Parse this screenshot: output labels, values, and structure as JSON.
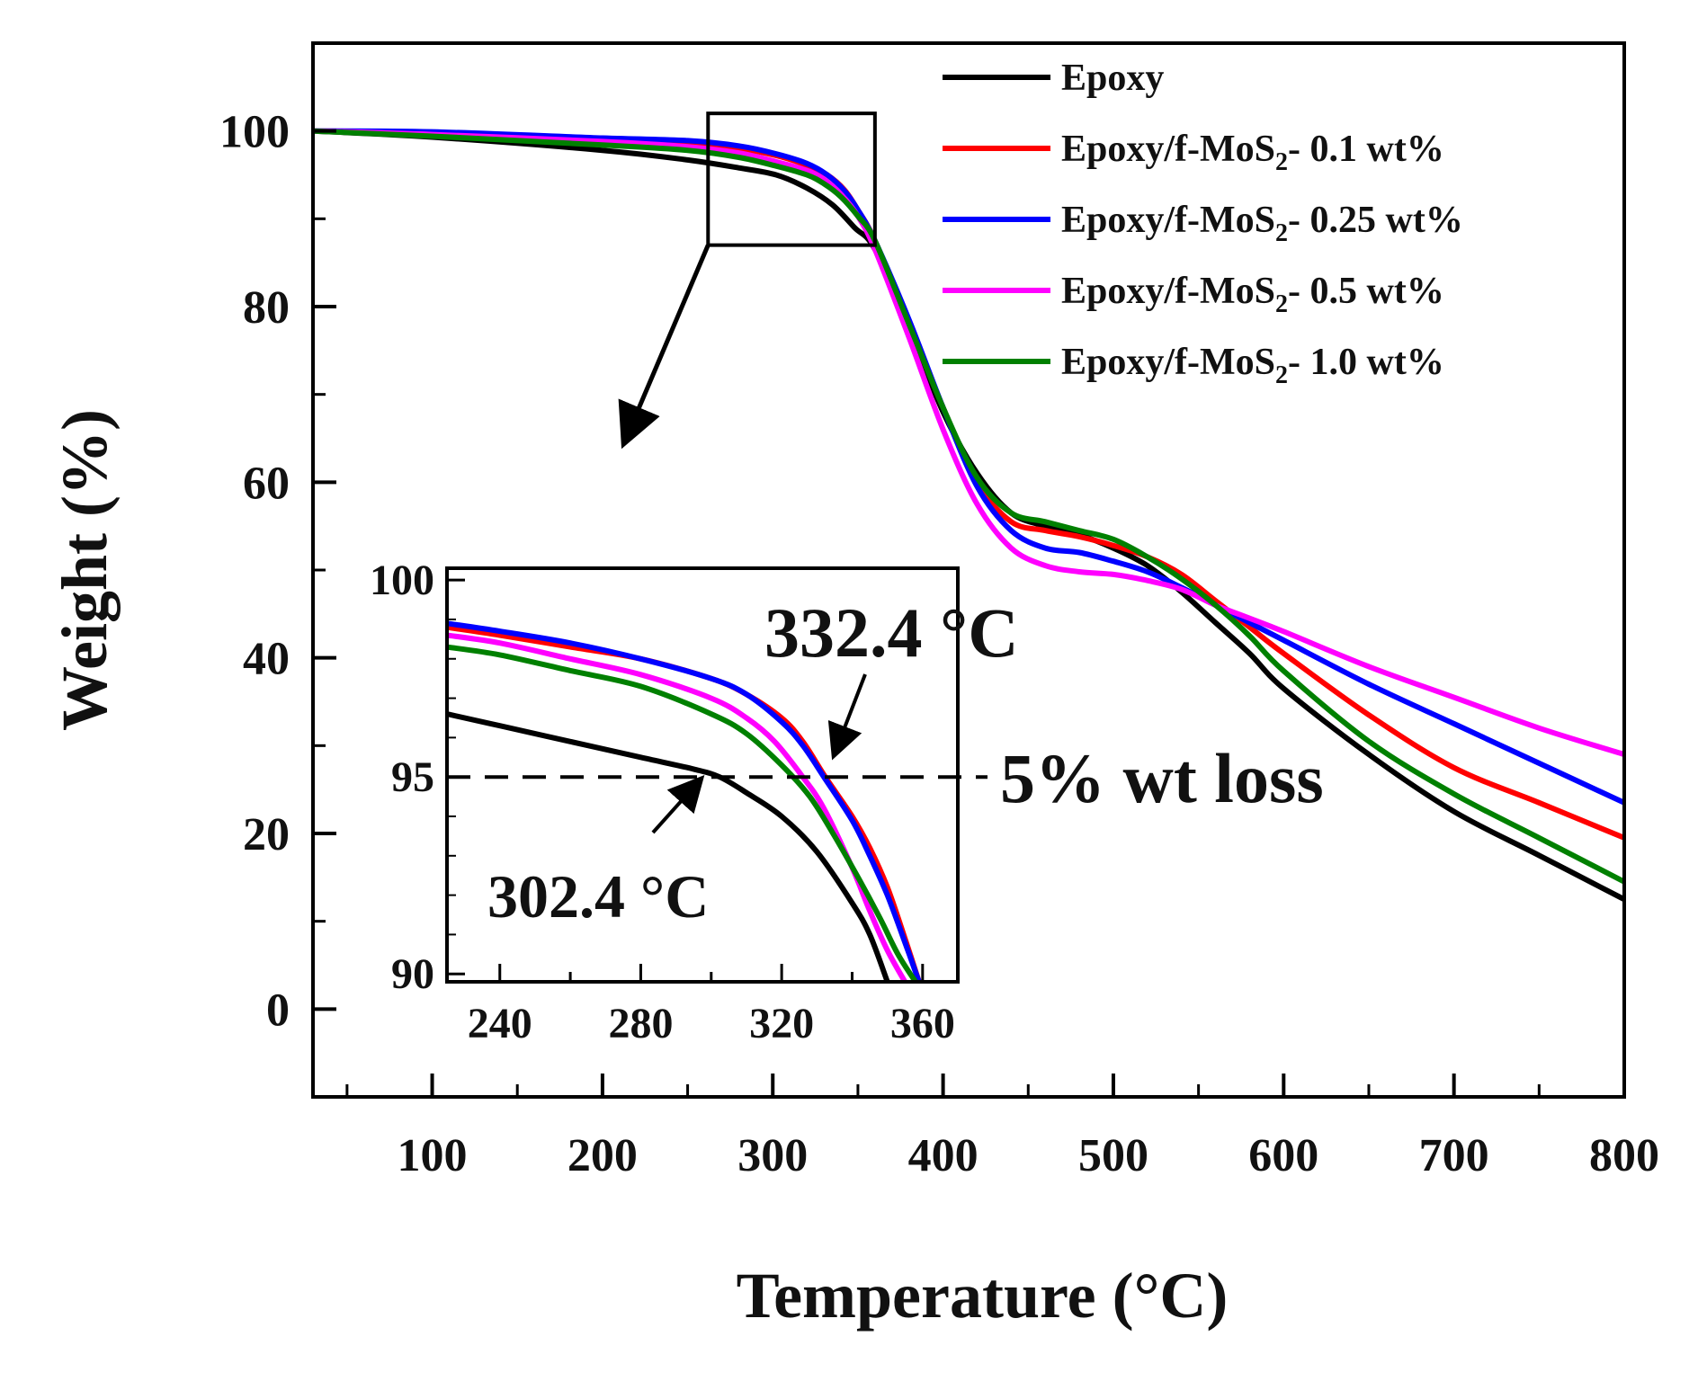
{
  "chart_data": [
    {
      "type": "line",
      "name": "main",
      "xlabel": "Temperature (°C)",
      "ylabel": "Weight (%)",
      "xlim": [
        30,
        800
      ],
      "ylim": [
        -10,
        110
      ],
      "xticks": [
        "100",
        "200",
        "300",
        "400",
        "500",
        "600",
        "700",
        "800"
      ],
      "yticks": [
        "0",
        "20",
        "40",
        "60",
        "80",
        "100"
      ],
      "legend": {
        "placement": "top-right",
        "items": [
          {
            "label": "Epoxy",
            "sub": "",
            "suffix": ""
          },
          {
            "label": "Epoxy/f-MoS",
            "sub": "2",
            "suffix": "- 0.1 wt%"
          },
          {
            "label": "Epoxy/f-MoS",
            "sub": "2",
            "suffix": "- 0.25 wt%"
          },
          {
            "label": "Epoxy/f-MoS",
            "sub": "2",
            "suffix": "- 0.5 wt%"
          },
          {
            "label": "Epoxy/f-MoS",
            "sub": "2",
            "suffix": "- 1.0 wt%"
          }
        ]
      },
      "series": [
        {
          "name": "Epoxy",
          "color": "#000000",
          "x": [
            30,
            100,
            200,
            250,
            280,
            302,
            320,
            335,
            348,
            360,
            380,
            400,
            420,
            440,
            460,
            480,
            500,
            520,
            540,
            560,
            580,
            600,
            650,
            700,
            750,
            800
          ],
          "y": [
            100,
            99.3,
            97.8,
            96.7,
            95.8,
            95.0,
            93.5,
            91.6,
            89.0,
            86.5,
            77.5,
            68.0,
            61.0,
            56.5,
            55.0,
            54.0,
            52.5,
            50.5,
            47.5,
            44.0,
            40.5,
            36.5,
            29.0,
            22.5,
            17.5,
            12.5
          ]
        },
        {
          "name": "Epoxy/f-MoS2- 0.1 wt%",
          "color": "#ff0000",
          "x": [
            30,
            100,
            200,
            250,
            280,
            302,
            320,
            332,
            342,
            350,
            360,
            380,
            400,
            420,
            440,
            460,
            480,
            500,
            520,
            540,
            560,
            580,
            600,
            650,
            700,
            750,
            800
          ],
          "y": [
            100,
            99.8,
            99.0,
            98.6,
            98.0,
            97.2,
            96.1,
            95.0,
            93.3,
            91.0,
            87.5,
            78.0,
            68.5,
            60.0,
            55.5,
            54.5,
            53.8,
            52.8,
            51.5,
            49.5,
            46.5,
            43.5,
            40.5,
            33.5,
            27.5,
            23.5,
            19.5
          ]
        },
        {
          "name": "Epoxy/f-MoS2- 0.25 wt%",
          "color": "#0000ff",
          "x": [
            30,
            100,
            200,
            250,
            280,
            302,
            320,
            332,
            342,
            350,
            360,
            380,
            400,
            420,
            440,
            460,
            480,
            500,
            520,
            540,
            560,
            580,
            600,
            650,
            700,
            750,
            800
          ],
          "y": [
            100,
            99.9,
            99.2,
            98.9,
            98.3,
            97.4,
            96.3,
            95.0,
            93.2,
            91.0,
            87.5,
            78.5,
            68.5,
            59.5,
            54.5,
            52.5,
            52.0,
            51.0,
            49.8,
            48.0,
            46.0,
            44.0,
            42.0,
            37.0,
            32.5,
            28.0,
            23.5
          ]
        },
        {
          "name": "Epoxy/f-MoS2- 0.5 wt%",
          "color": "#ff00ff",
          "x": [
            30,
            100,
            200,
            250,
            280,
            302,
            320,
            330,
            340,
            350,
            360,
            380,
            400,
            420,
            440,
            460,
            480,
            500,
            520,
            540,
            560,
            580,
            600,
            650,
            700,
            750,
            800
          ],
          "y": [
            100,
            99.6,
            98.8,
            98.2,
            97.5,
            96.5,
            95.5,
            94.5,
            92.8,
            90.3,
            86.5,
            76.5,
            66.0,
            57.5,
            52.5,
            50.5,
            49.8,
            49.5,
            48.8,
            47.8,
            46.0,
            44.5,
            43.0,
            39.0,
            35.5,
            32.0,
            29.0
          ]
        },
        {
          "name": "Epoxy/f-MoS2- 1.0 wt%",
          "color": "#008000",
          "x": [
            30,
            100,
            200,
            250,
            280,
            302,
            320,
            330,
            340,
            350,
            360,
            380,
            400,
            420,
            440,
            460,
            480,
            500,
            520,
            540,
            560,
            580,
            600,
            650,
            700,
            750,
            800
          ],
          "y": [
            100,
            99.4,
            98.4,
            97.8,
            97.0,
            96.0,
            95.0,
            94.0,
            92.5,
            90.3,
            87.5,
            78.0,
            68.5,
            60.5,
            56.5,
            55.5,
            54.5,
            53.5,
            51.5,
            49.0,
            46.0,
            42.5,
            38.5,
            30.5,
            24.5,
            19.5,
            14.5
          ]
        }
      ],
      "zoom_box": {
        "x": [
          262,
          360
        ],
        "y": [
          87,
          102
        ]
      },
      "annotation": "5% wt loss"
    },
    {
      "type": "line",
      "name": "inset",
      "xlim": [
        225,
        370
      ],
      "ylim": [
        89.8,
        100.3
      ],
      "xticks": [
        "240",
        "280",
        "320",
        "360"
      ],
      "yticks": [
        "90",
        "95",
        "100"
      ],
      "threshold_y": 95,
      "annotations": [
        "332.4 °C",
        "302.4 °C"
      ],
      "series": [
        {
          "name": "Epoxy",
          "color": "#000000",
          "x": [
            225,
            240,
            260,
            280,
            295,
            302.4,
            310,
            320,
            330,
            340,
            345,
            350
          ],
          "y": [
            96.6,
            96.3,
            95.9,
            95.5,
            95.2,
            95.0,
            94.6,
            94.0,
            93.1,
            91.8,
            91.0,
            89.8
          ]
        },
        {
          "name": "Epoxy/f-MoS2- 0.1 wt%",
          "color": "#ff0000",
          "x": [
            225,
            240,
            260,
            280,
            300,
            310,
            320,
            326,
            332.4,
            340,
            345,
            350,
            355,
            359
          ],
          "y": [
            98.8,
            98.6,
            98.3,
            98.0,
            97.5,
            97.1,
            96.5,
            95.9,
            95.0,
            94.0,
            93.2,
            92.2,
            90.9,
            89.8
          ]
        },
        {
          "name": "Epoxy/f-MoS2- 0.25 wt%",
          "color": "#0000ff",
          "x": [
            225,
            240,
            260,
            280,
            300,
            310,
            320,
            326,
            332,
            340,
            345,
            350,
            355,
            359
          ],
          "y": [
            98.9,
            98.7,
            98.4,
            98.0,
            97.5,
            97.1,
            96.4,
            95.8,
            95.0,
            93.9,
            93.0,
            92.0,
            90.8,
            89.8
          ]
        },
        {
          "name": "Epoxy/f-MoS2- 0.5 wt%",
          "color": "#ff00ff",
          "x": [
            225,
            240,
            260,
            280,
            300,
            310,
            318,
            326,
            332,
            340,
            345,
            350,
            355
          ],
          "y": [
            98.6,
            98.4,
            98.0,
            97.6,
            97.0,
            96.5,
            95.9,
            95.0,
            94.2,
            92.7,
            91.6,
            90.6,
            89.8
          ]
        },
        {
          "name": "Epoxy/f-MoS2- 1.0 wt%",
          "color": "#008000",
          "x": [
            225,
            240,
            260,
            280,
            300,
            310,
            320,
            328,
            335,
            342,
            348,
            353,
            358
          ],
          "y": [
            98.3,
            98.1,
            97.7,
            97.3,
            96.6,
            96.1,
            95.3,
            94.5,
            93.5,
            92.4,
            91.4,
            90.5,
            89.8
          ]
        }
      ]
    }
  ]
}
